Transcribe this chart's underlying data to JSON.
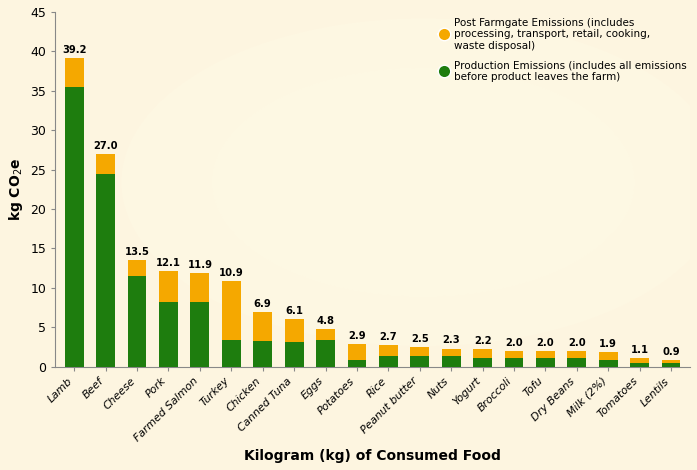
{
  "categories": [
    "Lamb",
    "Beef",
    "Cheese",
    "Pork",
    "Farmed Salmon",
    "Turkey",
    "Chicken",
    "Canned Tuna",
    "Eggs",
    "Potatoes",
    "Rice",
    "Peanut butter",
    "Nuts",
    "Yogurt",
    "Broccoli",
    "Tofu",
    "Dry Beans",
    "Milk (2%)",
    "Tomatoes",
    "Lentils"
  ],
  "totals": [
    39.2,
    27.0,
    13.5,
    12.1,
    11.9,
    10.9,
    6.9,
    6.1,
    4.8,
    2.9,
    2.7,
    2.5,
    2.3,
    2.2,
    2.0,
    2.0,
    2.0,
    1.9,
    1.1,
    0.9
  ],
  "production": [
    35.5,
    24.5,
    11.5,
    8.2,
    8.2,
    3.4,
    3.3,
    3.2,
    3.4,
    0.9,
    1.4,
    1.4,
    1.4,
    1.1,
    1.1,
    1.1,
    1.1,
    0.9,
    0.5,
    0.5
  ],
  "green_color": "#1e7d0e",
  "orange_color": "#f5a800",
  "background_color": "#fdf5e0",
  "ylabel": "kg CO$_2$e",
  "xlabel": "Kilogram (kg) of Consumed Food",
  "ylim": [
    0,
    45
  ],
  "yticks": [
    0,
    5,
    10,
    15,
    20,
    25,
    30,
    35,
    40,
    45
  ],
  "legend_orange": "Post Farmgate Emissions (includes\nprocessing, transport, retail, cooking,\nwaste disposal)",
  "legend_green": "Production Emissions (includes all emissions\nbefore product leaves the farm)",
  "axis_label_fontsize": 10,
  "tick_fontsize": 9,
  "bar_width": 0.6
}
